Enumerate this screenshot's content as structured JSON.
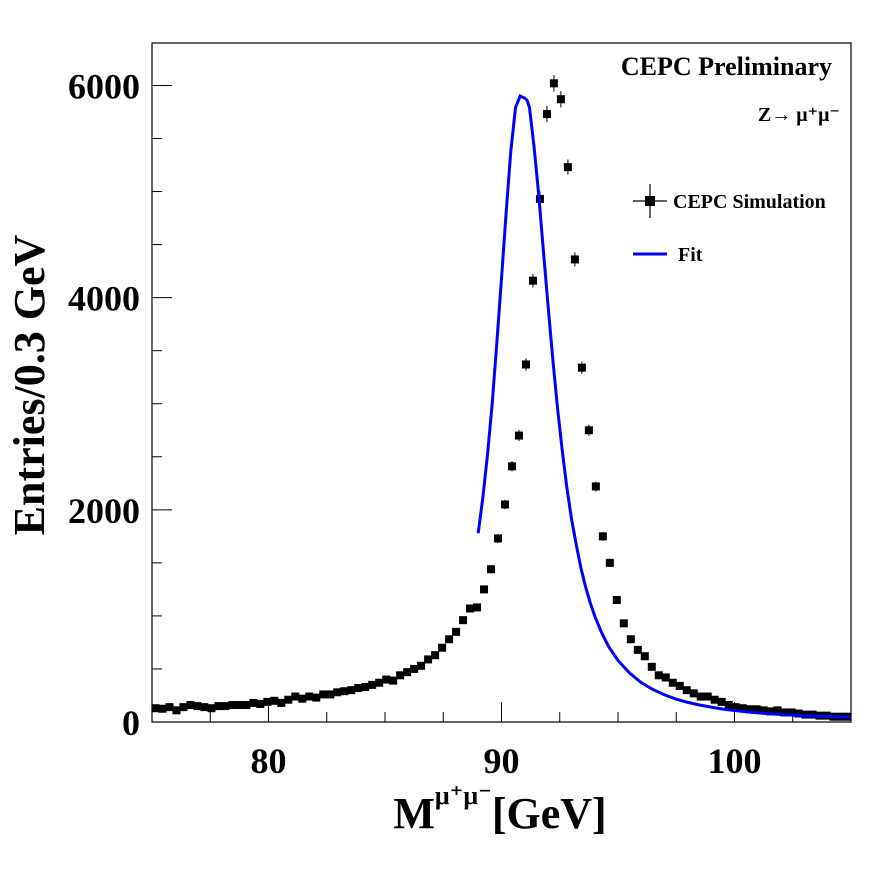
{
  "chart_data": {
    "type": "scatter",
    "xlim": [
      75,
      105
    ],
    "ylim": [
      0,
      6400
    ],
    "x_ticks": [
      80,
      90,
      100
    ],
    "y_ticks": [
      0,
      2000,
      4000,
      6000
    ],
    "x_tick_labels": [
      "80",
      "90",
      "100"
    ],
    "y_tick_labels": [
      "0",
      "2000",
      "4000",
      "6000"
    ],
    "x_minor_ticks": [
      75,
      77.5,
      82.5,
      85,
      87.5,
      92.5,
      95,
      97.5,
      102.5,
      105
    ],
    "y_minor_ticks": [
      500,
      1000,
      1500,
      2500,
      3000,
      3500,
      4500,
      5000,
      5500
    ],
    "ylabel": "Entries/0.3 GeV",
    "xlabel_base": "M",
    "xlabel_sup": "μ⁺μ⁻",
    "xlabel_unit": "[GeV]",
    "grid": false,
    "annotations": {
      "preliminary": "CEPC Preliminary",
      "process": "Z→  μ⁺μ⁻"
    },
    "legend": {
      "placement": "top-right",
      "entries": [
        {
          "label": "CEPC Simulation",
          "style": "marker"
        },
        {
          "label": "Fit",
          "style": "line"
        }
      ]
    },
    "series": [
      {
        "name": "CEPC Simulation",
        "kind": "points",
        "color": "#000000",
        "x": [
          75.15,
          75.45,
          75.75,
          76.05,
          76.35,
          76.65,
          76.95,
          77.25,
          77.55,
          77.85,
          78.15,
          78.45,
          78.75,
          79.05,
          79.35,
          79.65,
          79.95,
          80.25,
          80.55,
          80.85,
          81.15,
          81.45,
          81.75,
          82.05,
          82.35,
          82.65,
          82.95,
          83.25,
          83.55,
          83.85,
          84.15,
          84.45,
          84.75,
          85.05,
          85.35,
          85.65,
          85.95,
          86.25,
          86.55,
          86.85,
          87.15,
          87.45,
          87.75,
          88.05,
          88.35,
          88.65,
          88.95,
          89.25,
          89.55,
          89.85,
          90.15,
          90.45,
          90.75,
          91.05,
          91.35,
          91.65,
          91.95,
          92.25,
          92.55,
          92.85,
          93.15,
          93.45,
          93.75,
          94.05,
          94.35,
          94.65,
          94.95,
          95.25,
          95.55,
          95.85,
          96.15,
          96.45,
          96.75,
          97.05,
          97.35,
          97.65,
          97.95,
          98.25,
          98.55,
          98.85,
          99.15,
          99.45,
          99.75,
          100.05,
          100.35,
          100.65,
          100.95,
          101.25,
          101.55,
          101.85,
          102.15,
          102.45,
          102.75,
          103.05,
          103.35,
          103.65,
          103.95,
          104.25,
          104.55,
          104.85
        ],
        "y": [
          130,
          125,
          140,
          110,
          140,
          160,
          150,
          140,
          130,
          150,
          150,
          160,
          160,
          160,
          180,
          170,
          190,
          200,
          180,
          210,
          240,
          220,
          240,
          230,
          260,
          260,
          280,
          290,
          300,
          320,
          330,
          350,
          370,
          400,
          390,
          440,
          470,
          500,
          530,
          590,
          630,
          700,
          780,
          850,
          960,
          1070,
          1080,
          1250,
          1440,
          1730,
          2050,
          2410,
          2700,
          3370,
          4160,
          4930,
          5730,
          6020,
          5870,
          5230,
          4360,
          3340,
          2750,
          2220,
          1750,
          1500,
          1150,
          930,
          780,
          680,
          620,
          520,
          440,
          420,
          370,
          340,
          300,
          270,
          240,
          240,
          210,
          190,
          160,
          140,
          130,
          120,
          120,
          110,
          100,
          110,
          90,
          90,
          80,
          70,
          70,
          60,
          60,
          50,
          50,
          50
        ],
        "yerr": [
          11,
          11,
          12,
          10,
          12,
          13,
          12,
          12,
          11,
          12,
          12,
          13,
          13,
          13,
          13,
          13,
          14,
          14,
          13,
          14,
          15,
          15,
          15,
          15,
          16,
          16,
          17,
          17,
          17,
          18,
          18,
          19,
          19,
          20,
          20,
          21,
          22,
          22,
          23,
          24,
          25,
          26,
          28,
          29,
          31,
          33,
          33,
          35,
          38,
          42,
          45,
          49,
          52,
          58,
          64,
          70,
          76,
          78,
          77,
          72,
          66,
          58,
          52,
          47,
          42,
          39,
          34,
          30,
          28,
          26,
          25,
          23,
          21,
          20,
          19,
          18,
          17,
          16,
          15,
          15,
          14,
          14,
          13,
          12,
          11,
          11,
          11,
          10,
          10,
          10,
          9,
          9,
          9,
          8,
          8,
          8,
          8,
          7,
          7,
          7
        ]
      },
      {
        "name": "Fit",
        "kind": "curve",
        "color": "#0000ff",
        "x": [
          89.0,
          89.2,
          89.4,
          89.6,
          89.8,
          90.0,
          90.2,
          90.4,
          90.6,
          90.8,
          91.0,
          91.1,
          91.2,
          91.4,
          91.6,
          91.8,
          92.0,
          92.2,
          92.4,
          92.6,
          92.8,
          93.0,
          93.2,
          93.4,
          93.6,
          93.8,
          94.0,
          94.3,
          94.6,
          95.0,
          95.5,
          96.0,
          96.5,
          97.0,
          97.5,
          98.0,
          98.5,
          99.0,
          99.5,
          100.0,
          100.5,
          101.0,
          101.5,
          102.0,
          102.5,
          103.0,
          103.5,
          104.0,
          104.5,
          105.0
        ],
        "y": [
          1780,
          2120,
          2520,
          3000,
          3570,
          4180,
          4810,
          5380,
          5790,
          5900,
          5880,
          5860,
          5790,
          5420,
          4960,
          4440,
          3920,
          3420,
          2970,
          2570,
          2220,
          1920,
          1680,
          1460,
          1280,
          1130,
          1000,
          840,
          710,
          580,
          460,
          370,
          305,
          255,
          215,
          185,
          160,
          140,
          122,
          108,
          96,
          86,
          78,
          71,
          65,
          60,
          56,
          52,
          49,
          46
        ]
      }
    ]
  }
}
